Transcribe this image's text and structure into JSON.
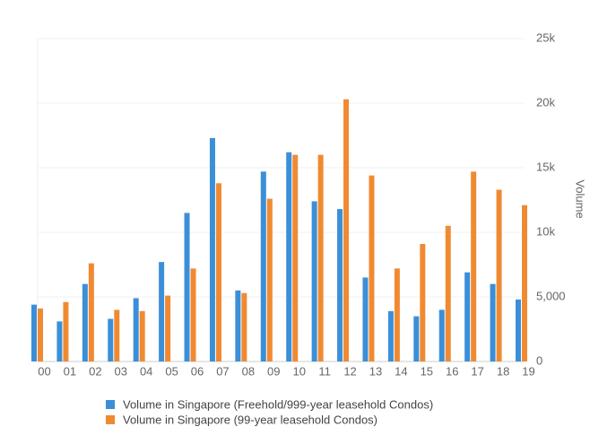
{
  "chart_data": {
    "type": "bar",
    "categories": [
      "00",
      "01",
      "02",
      "03",
      "04",
      "05",
      "06",
      "07",
      "08",
      "09",
      "10",
      "11",
      "12",
      "13",
      "14",
      "15",
      "16",
      "17",
      "18",
      "19"
    ],
    "series": [
      {
        "name": "Volume in Singapore (Freehold/999-year leasehold Condos)",
        "color": "#3b8fd9",
        "values": [
          4400,
          3100,
          6000,
          3300,
          4900,
          7700,
          11500,
          17300,
          5500,
          14700,
          16200,
          12400,
          11800,
          6500,
          3900,
          3500,
          4000,
          6900,
          6000,
          4800
        ]
      },
      {
        "name": "Volume in Singapore (99-year leasehold Condos)",
        "color": "#f08a32",
        "values": [
          4100,
          4600,
          7600,
          4000,
          3900,
          5100,
          7200,
          13800,
          5300,
          12600,
          16000,
          16000,
          20300,
          14400,
          7200,
          9100,
          10500,
          14700,
          13300,
          12100
        ]
      }
    ],
    "y_label": "Volume",
    "ylim": [
      0,
      25000
    ],
    "yticks": [
      0,
      {
        "value": 5000,
        "label": "5,000"
      },
      {
        "value": 10000,
        "label": "10k"
      },
      {
        "value": 15000,
        "label": "15k"
      },
      {
        "value": 20000,
        "label": "20k"
      },
      {
        "value": 25000,
        "label": "25k"
      }
    ],
    "grid": true
  }
}
